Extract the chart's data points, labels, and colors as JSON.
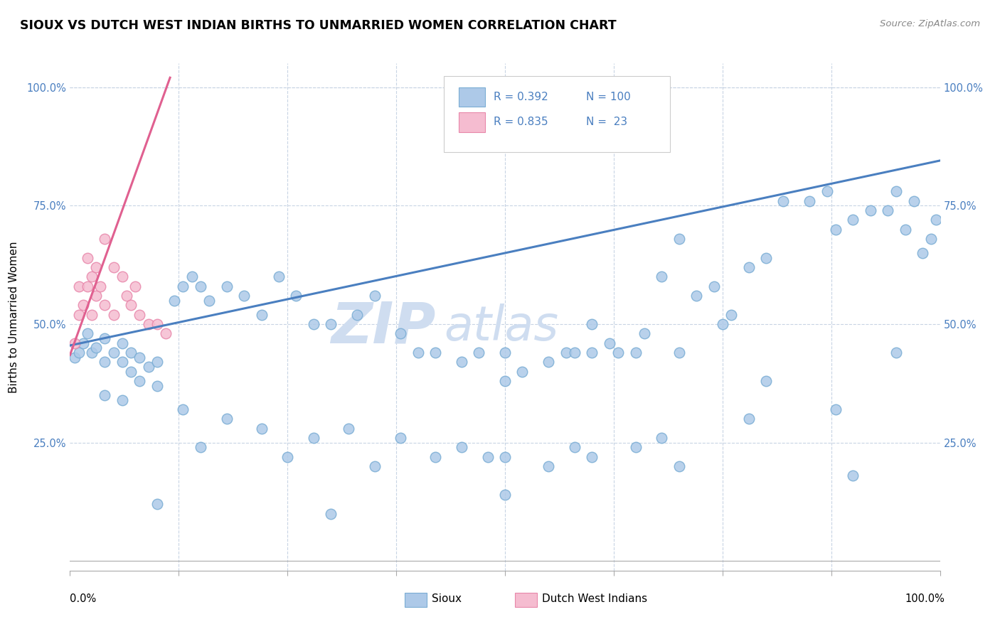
{
  "title": "SIOUX VS DUTCH WEST INDIAN BIRTHS TO UNMARRIED WOMEN CORRELATION CHART",
  "source_text": "Source: ZipAtlas.com",
  "ylabel": "Births to Unmarried Women",
  "xlim": [
    0.0,
    1.0
  ],
  "ylim": [
    -0.02,
    1.05
  ],
  "sioux_color": "#adc9e8",
  "sioux_edge_color": "#7aadd4",
  "dwi_color": "#f5bcd0",
  "dwi_edge_color": "#e887aa",
  "blue_line_color": "#4a7fc0",
  "pink_line_color": "#e06090",
  "legend_R1": "R = 0.392",
  "legend_N1": "N = 100",
  "legend_R2": "R = 0.835",
  "legend_N2": "N =  23",
  "watermark_zip": "ZIP",
  "watermark_atlas": "atlas",
  "watermark_color": "#cfddf0",
  "grid_color": "#c8d4e4",
  "background_color": "#ffffff",
  "title_fontsize": 13,
  "sioux_x": [
    0.005,
    0.01,
    0.015,
    0.02,
    0.025,
    0.03,
    0.04,
    0.04,
    0.05,
    0.06,
    0.06,
    0.07,
    0.07,
    0.08,
    0.09,
    0.1,
    0.04,
    0.06,
    0.08,
    0.1,
    0.12,
    0.13,
    0.14,
    0.15,
    0.16,
    0.18,
    0.2,
    0.22,
    0.24,
    0.26,
    0.28,
    0.3,
    0.33,
    0.35,
    0.38,
    0.4,
    0.42,
    0.45,
    0.47,
    0.5,
    0.5,
    0.52,
    0.55,
    0.57,
    0.58,
    0.6,
    0.6,
    0.62,
    0.63,
    0.65,
    0.66,
    0.68,
    0.7,
    0.72,
    0.74,
    0.76,
    0.78,
    0.8,
    0.82,
    0.85,
    0.87,
    0.88,
    0.9,
    0.92,
    0.94,
    0.95,
    0.96,
    0.97,
    0.98,
    0.99,
    0.995,
    0.13,
    0.18,
    0.22,
    0.28,
    0.32,
    0.38,
    0.42,
    0.45,
    0.5,
    0.55,
    0.6,
    0.65,
    0.7,
    0.75,
    0.8,
    0.15,
    0.25,
    0.35,
    0.48,
    0.58,
    0.68,
    0.78,
    0.88,
    0.95,
    0.1,
    0.3,
    0.5,
    0.7,
    0.9
  ],
  "sioux_y": [
    0.43,
    0.44,
    0.46,
    0.48,
    0.44,
    0.45,
    0.47,
    0.42,
    0.44,
    0.46,
    0.42,
    0.44,
    0.4,
    0.43,
    0.41,
    0.42,
    0.35,
    0.34,
    0.38,
    0.37,
    0.55,
    0.58,
    0.6,
    0.58,
    0.55,
    0.58,
    0.56,
    0.52,
    0.6,
    0.56,
    0.5,
    0.5,
    0.52,
    0.56,
    0.48,
    0.44,
    0.44,
    0.42,
    0.44,
    0.44,
    0.38,
    0.4,
    0.42,
    0.44,
    0.44,
    0.5,
    0.44,
    0.46,
    0.44,
    0.44,
    0.48,
    0.6,
    0.68,
    0.56,
    0.58,
    0.52,
    0.62,
    0.64,
    0.76,
    0.76,
    0.78,
    0.7,
    0.72,
    0.74,
    0.74,
    0.78,
    0.7,
    0.76,
    0.65,
    0.68,
    0.72,
    0.32,
    0.3,
    0.28,
    0.26,
    0.28,
    0.26,
    0.22,
    0.24,
    0.22,
    0.2,
    0.22,
    0.24,
    0.44,
    0.5,
    0.38,
    0.24,
    0.22,
    0.2,
    0.22,
    0.24,
    0.26,
    0.3,
    0.32,
    0.44,
    0.12,
    0.1,
    0.14,
    0.2,
    0.18
  ],
  "dwi_x": [
    0.005,
    0.01,
    0.01,
    0.015,
    0.02,
    0.02,
    0.025,
    0.025,
    0.03,
    0.03,
    0.035,
    0.04,
    0.04,
    0.05,
    0.05,
    0.06,
    0.065,
    0.07,
    0.075,
    0.08,
    0.09,
    0.1,
    0.11
  ],
  "dwi_y": [
    0.46,
    0.52,
    0.58,
    0.54,
    0.58,
    0.64,
    0.52,
    0.6,
    0.56,
    0.62,
    0.58,
    0.54,
    0.68,
    0.62,
    0.52,
    0.6,
    0.56,
    0.54,
    0.58,
    0.52,
    0.5,
    0.5,
    0.48
  ],
  "blue_trend_x": [
    0.0,
    1.0
  ],
  "blue_trend_y": [
    0.455,
    0.845
  ],
  "pink_trend_x": [
    0.0,
    0.115
  ],
  "pink_trend_y": [
    0.435,
    1.02
  ]
}
